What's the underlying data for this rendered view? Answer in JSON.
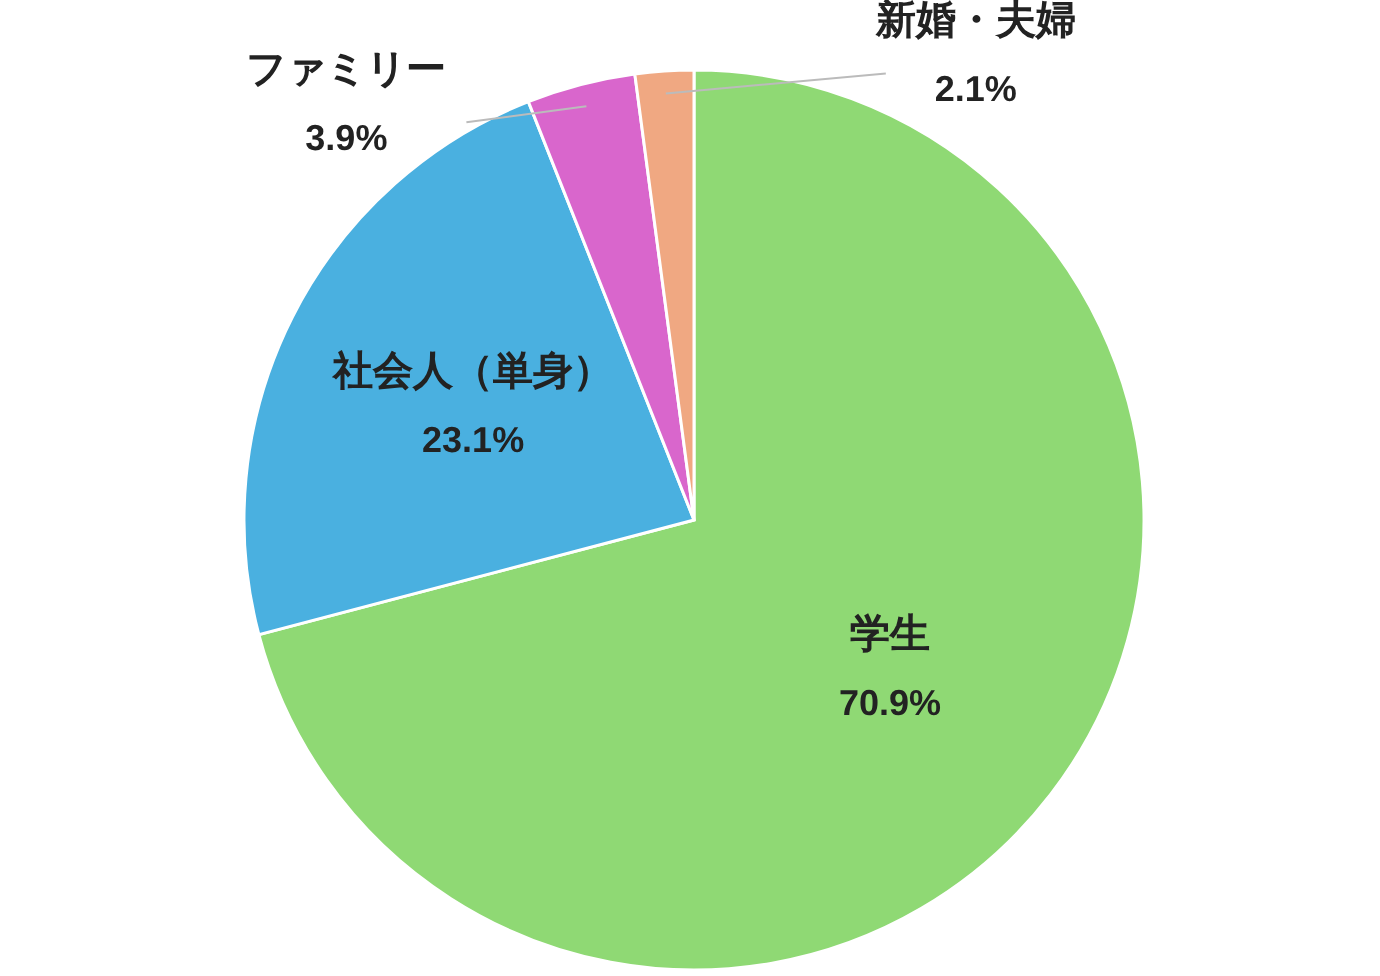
{
  "chart_data": {
    "type": "pie",
    "categories": [
      "学生",
      "社会人（単身）",
      "ファミリー",
      "新婚・夫婦"
    ],
    "values": [
      70.9,
      23.1,
      3.9,
      2.1
    ],
    "colors": [
      "#8fd974",
      "#4ab0e0",
      "#d966cc",
      "#f0a882"
    ],
    "value_labels": [
      "70.9%",
      "23.1%",
      "3.9%",
      "2.1%"
    ]
  }
}
